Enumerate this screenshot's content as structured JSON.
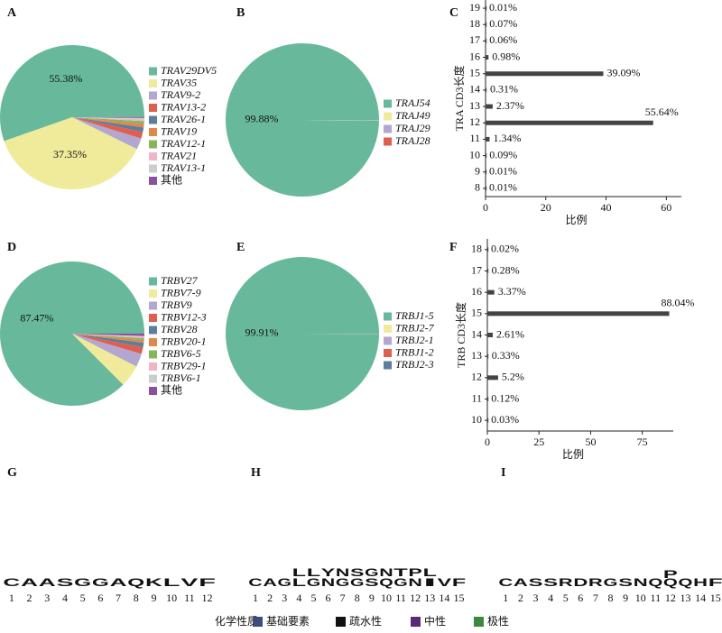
{
  "chart_data": [
    {
      "type": "pie",
      "panel": "A",
      "categories": [
        "TRAV29DV5",
        "TRAV35",
        "TRAV9-2",
        "TRAV13-2",
        "TRAV26-1",
        "TRAV19",
        "TRAV12-1",
        "TRAV21",
        "TRAV13-1",
        "其他"
      ],
      "values": [
        55.38,
        37.35,
        2.5,
        1.5,
        1,
        0.8,
        0.6,
        0.4,
        0.3,
        0.17
      ],
      "value_labels": [
        "55.38%",
        "37.35%",
        null,
        null,
        null,
        null,
        null,
        null,
        null,
        null
      ],
      "colors": [
        "#68b99c",
        "#efeb9a",
        "#b3a7cf",
        "#df5f4f",
        "#5d7d9c",
        "#e0884a",
        "#86b65a",
        "#f1b3c8",
        "#cccccc",
        "#8f4f9f"
      ]
    },
    {
      "type": "pie",
      "panel": "B",
      "categories": [
        "TRAJ54",
        "TRAJ49",
        "TRAJ29",
        "TRAJ28"
      ],
      "values": [
        99.88,
        0.06,
        0.04,
        0.02
      ],
      "value_labels": [
        "99.88%",
        null,
        null,
        null
      ],
      "colors": [
        "#68b99c",
        "#efeb9a",
        "#b3a7cf",
        "#df5f4f"
      ]
    },
    {
      "type": "bar",
      "orientation": "horizontal",
      "panel": "C",
      "categories": [
        8,
        9,
        10,
        11,
        12,
        13,
        14,
        15,
        16,
        17,
        18,
        19
      ],
      "values": [
        0.01,
        0.01,
        0.09,
        1.34,
        55.64,
        2.37,
        0.31,
        39.09,
        0.98,
        0.06,
        0.07,
        0.01
      ],
      "value_labels": [
        "0.01%",
        "0.01%",
        "0.09%",
        "1.34%",
        "55.64%",
        "2.37%",
        "0.31%",
        "39.09%",
        "0.98%",
        "0.06%",
        "0.07%",
        "0.01%"
      ],
      "x_label": "比例",
      "y_label": "TRA CD3长度",
      "color": "#444444",
      "xlim": [
        0,
        65
      ],
      "xticks": [
        0,
        20,
        40,
        60
      ]
    },
    {
      "type": "pie",
      "panel": "D",
      "categories": [
        "TRBV27",
        "TRBV7-9",
        "TRBV9",
        "TRBV12-3",
        "TRBV28",
        "TRBV20-1",
        "TRBV6-5",
        "TRBV29-1",
        "TRBV6-1",
        "其他"
      ],
      "values": [
        87.47,
        5,
        3,
        1.5,
        1,
        0.6,
        0.4,
        0.3,
        0.2,
        0.53
      ],
      "value_labels": [
        "87.47%",
        null,
        null,
        null,
        null,
        null,
        null,
        null,
        null,
        null
      ],
      "colors": [
        "#68b99c",
        "#efeb9a",
        "#b3a7cf",
        "#df5f4f",
        "#5d7d9c",
        "#e0884a",
        "#86b65a",
        "#f1b3c8",
        "#cccccc",
        "#8f4f9f"
      ]
    },
    {
      "type": "pie",
      "panel": "E",
      "categories": [
        "TRBJ1-5",
        "TRBJ2-7",
        "TRBJ2-1",
        "TRBJ1-2",
        "TRBJ2-3"
      ],
      "values": [
        99.91,
        0.04,
        0.03,
        0.01,
        0.01
      ],
      "value_labels": [
        "99.91%",
        null,
        null,
        null,
        null
      ],
      "colors": [
        "#68b99c",
        "#efeb9a",
        "#b3a7cf",
        "#df5f4f",
        "#5d7d9c"
      ]
    },
    {
      "type": "bar",
      "orientation": "horizontal",
      "panel": "F",
      "categories": [
        10,
        11,
        12,
        13,
        14,
        15,
        16,
        17,
        18
      ],
      "values": [
        0.03,
        0.12,
        5.2,
        0.33,
        2.61,
        88.04,
        3.37,
        0.28,
        0.02
      ],
      "value_labels": [
        "0.03%",
        "0.12%",
        "5.2%",
        "0.33%",
        "2.61%",
        "88.04%",
        "3.37%",
        "0.28%",
        "0.02%"
      ],
      "x_label": "比例",
      "y_label": "TRB CD3长度",
      "color": "#444444",
      "xlim": [
        0,
        90
      ],
      "xticks": [
        0,
        25,
        50,
        75
      ]
    },
    {
      "type": "logo",
      "panel": "G",
      "positions": [
        1,
        2,
        3,
        4,
        5,
        6,
        7,
        8,
        9,
        10,
        11,
        12
      ],
      "letters": [
        [
          {
            "letter": "C",
            "height": 1
          }
        ],
        [
          {
            "letter": "A",
            "height": 1
          }
        ],
        [
          {
            "letter": "A",
            "height": 1
          }
        ],
        [
          {
            "letter": "S",
            "height": 1
          }
        ],
        [
          {
            "letter": "G",
            "height": 1
          }
        ],
        [
          {
            "letter": "G",
            "height": 1
          }
        ],
        [
          {
            "letter": "A",
            "height": 1
          }
        ],
        [
          {
            "letter": "Q",
            "height": 1
          }
        ],
        [
          {
            "letter": "K",
            "height": 0.95
          }
        ],
        [
          {
            "letter": "L",
            "height": 0.9
          }
        ],
        [
          {
            "letter": "V",
            "height": 0.9
          }
        ],
        [
          {
            "letter": "F",
            "height": 0.9
          }
        ]
      ]
    },
    {
      "type": "logo",
      "panel": "H",
      "positions": [
        1,
        2,
        3,
        4,
        5,
        6,
        7,
        8,
        9,
        10,
        11,
        12,
        13,
        14,
        15
      ],
      "letters": [
        [
          {
            "letter": "C",
            "height": 1
          }
        ],
        [
          {
            "letter": "A",
            "height": 1
          }
        ],
        [
          {
            "letter": "G",
            "height": 1
          }
        ],
        [
          {
            "letter": "L",
            "height": 0.78
          },
          {
            "letter": "L",
            "height": 0.1
          }
        ],
        [
          {
            "letter": "L",
            "height": 0.76
          },
          {
            "letter": "G",
            "height": 0.1
          }
        ],
        [
          {
            "letter": "Y",
            "height": 0.86
          },
          {
            "letter": "N",
            "height": 0.1
          }
        ],
        [
          {
            "letter": "N",
            "height": 0.86
          },
          {
            "letter": "G",
            "height": 0.1
          }
        ],
        [
          {
            "letter": "S",
            "height": 0.86
          },
          {
            "letter": "G",
            "height": 0.1
          }
        ],
        [
          {
            "letter": "G",
            "height": 0.86
          },
          {
            "letter": "S",
            "height": 0.1
          }
        ],
        [
          {
            "letter": "N",
            "height": 0.86
          },
          {
            "letter": "Q",
            "height": 0.1
          }
        ],
        [
          {
            "letter": "T",
            "height": 0.86
          },
          {
            "letter": "G",
            "height": 0.1
          }
        ],
        [
          {
            "letter": "P",
            "height": 0.78
          },
          {
            "letter": "N",
            "height": 0.1
          }
        ],
        [
          {
            "letter": "L",
            "height": 0.78
          },
          {
            "letter": "I",
            "height": 0.1
          }
        ],
        [
          {
            "letter": "V",
            "height": 0.95
          }
        ],
        [
          {
            "letter": "F",
            "height": 1
          }
        ]
      ]
    },
    {
      "type": "logo",
      "panel": "I",
      "positions": [
        1,
        2,
        3,
        4,
        5,
        6,
        7,
        8,
        9,
        10,
        11,
        12,
        13,
        14,
        15
      ],
      "letters": [
        [
          {
            "letter": "C",
            "height": 1
          }
        ],
        [
          {
            "letter": "A",
            "height": 1
          }
        ],
        [
          {
            "letter": "S",
            "height": 1
          }
        ],
        [
          {
            "letter": "S",
            "height": 1
          }
        ],
        [
          {
            "letter": "R",
            "height": 1
          }
        ],
        [
          {
            "letter": "D",
            "height": 1
          }
        ],
        [
          {
            "letter": "R",
            "height": 1
          }
        ],
        [
          {
            "letter": "G",
            "height": 1
          }
        ],
        [
          {
            "letter": "S",
            "height": 1
          }
        ],
        [
          {
            "letter": "N",
            "height": 1
          }
        ],
        [
          {
            "letter": "Q",
            "height": 1
          }
        ],
        [
          {
            "letter": "P",
            "height": 0.86
          },
          {
            "letter": "Q",
            "height": 0.08
          }
        ],
        [
          {
            "letter": "Q",
            "height": 0.95
          }
        ],
        [
          {
            "letter": "H",
            "height": 0.95
          }
        ],
        [
          {
            "letter": "F",
            "height": 1
          }
        ]
      ]
    }
  ],
  "letter_colors": {
    "C": "#3c893c",
    "S": "#3c893c",
    "G": "#3c893c",
    "T": "#3c893c",
    "Y": "#3c893c",
    "N": "#5a2a78",
    "Q": "#5a2a78",
    "K": "#3d4c7d",
    "R": "#3d4c7d",
    "H": "#3d4c7d",
    "D": "#c2292b",
    "A": "#111111",
    "L": "#111111",
    "V": "#111111",
    "F": "#111111",
    "P": "#111111",
    "I": "#111111"
  },
  "legend": {
    "title": "化学性质",
    "items": [
      {
        "name": "基础要素",
        "color": "#3d4c7d"
      },
      {
        "name": "疏水性",
        "color": "#111111"
      },
      {
        "name": "中性",
        "color": "#5a2a78"
      },
      {
        "name": "极性",
        "color": "#3c893c"
      }
    ]
  }
}
